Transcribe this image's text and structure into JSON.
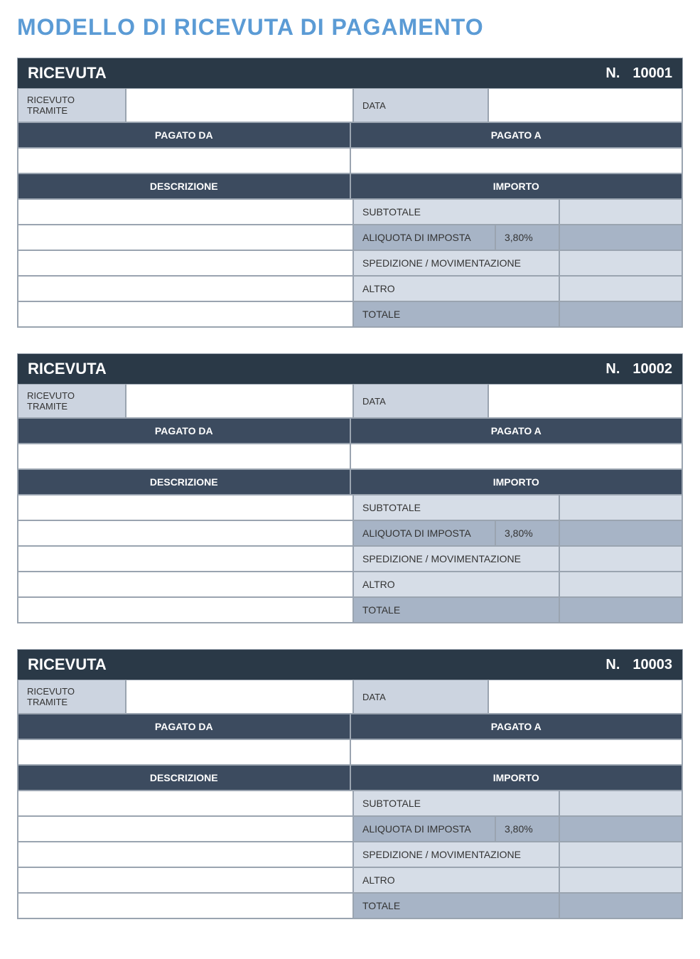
{
  "title": "MODELLO DI RICEVUTA DI PAGAMENTO",
  "labels": {
    "receipt": "RICEVUTA",
    "number_prefix": "N.",
    "received_via": "RICEVUTO TRAMITE",
    "date": "DATA",
    "paid_by": "PAGATO DA",
    "paid_to": "PAGATO A",
    "description": "DESCRIZIONE",
    "amount": "IMPORTO",
    "subtotal": "SUBTOTALE",
    "tax_rate": "ALIQUOTA DI IMPOSTA",
    "shipping": "SPEDIZIONE / MOVIMENTAZIONE",
    "other": "ALTRO",
    "total": "TOTALE"
  },
  "colors": {
    "title": "#5b9bd5",
    "header_dark": "#2a3947",
    "section_dark": "#3c4b5f",
    "label_bg": "#ccd4e0",
    "light_blue": "#d6dde7",
    "mid_blue": "#a7b4c6",
    "border": "#9aa4b0",
    "white": "#ffffff"
  },
  "receipts": [
    {
      "number": "10001",
      "received_via": "",
      "date": "",
      "paid_by": "",
      "paid_to": "",
      "description": "",
      "subtotal": "",
      "tax_rate": "3,80%",
      "tax_amount": "",
      "shipping": "",
      "other": "",
      "total": ""
    },
    {
      "number": "10002",
      "received_via": "",
      "date": "",
      "paid_by": "",
      "paid_to": "",
      "description": "",
      "subtotal": "",
      "tax_rate": "3,80%",
      "tax_amount": "",
      "shipping": "",
      "other": "",
      "total": ""
    },
    {
      "number": "10003",
      "received_via": "",
      "date": "",
      "paid_by": "",
      "paid_to": "",
      "description": "",
      "subtotal": "",
      "tax_rate": "3,80%",
      "tax_amount": "",
      "shipping": "",
      "other": "",
      "total": ""
    }
  ]
}
